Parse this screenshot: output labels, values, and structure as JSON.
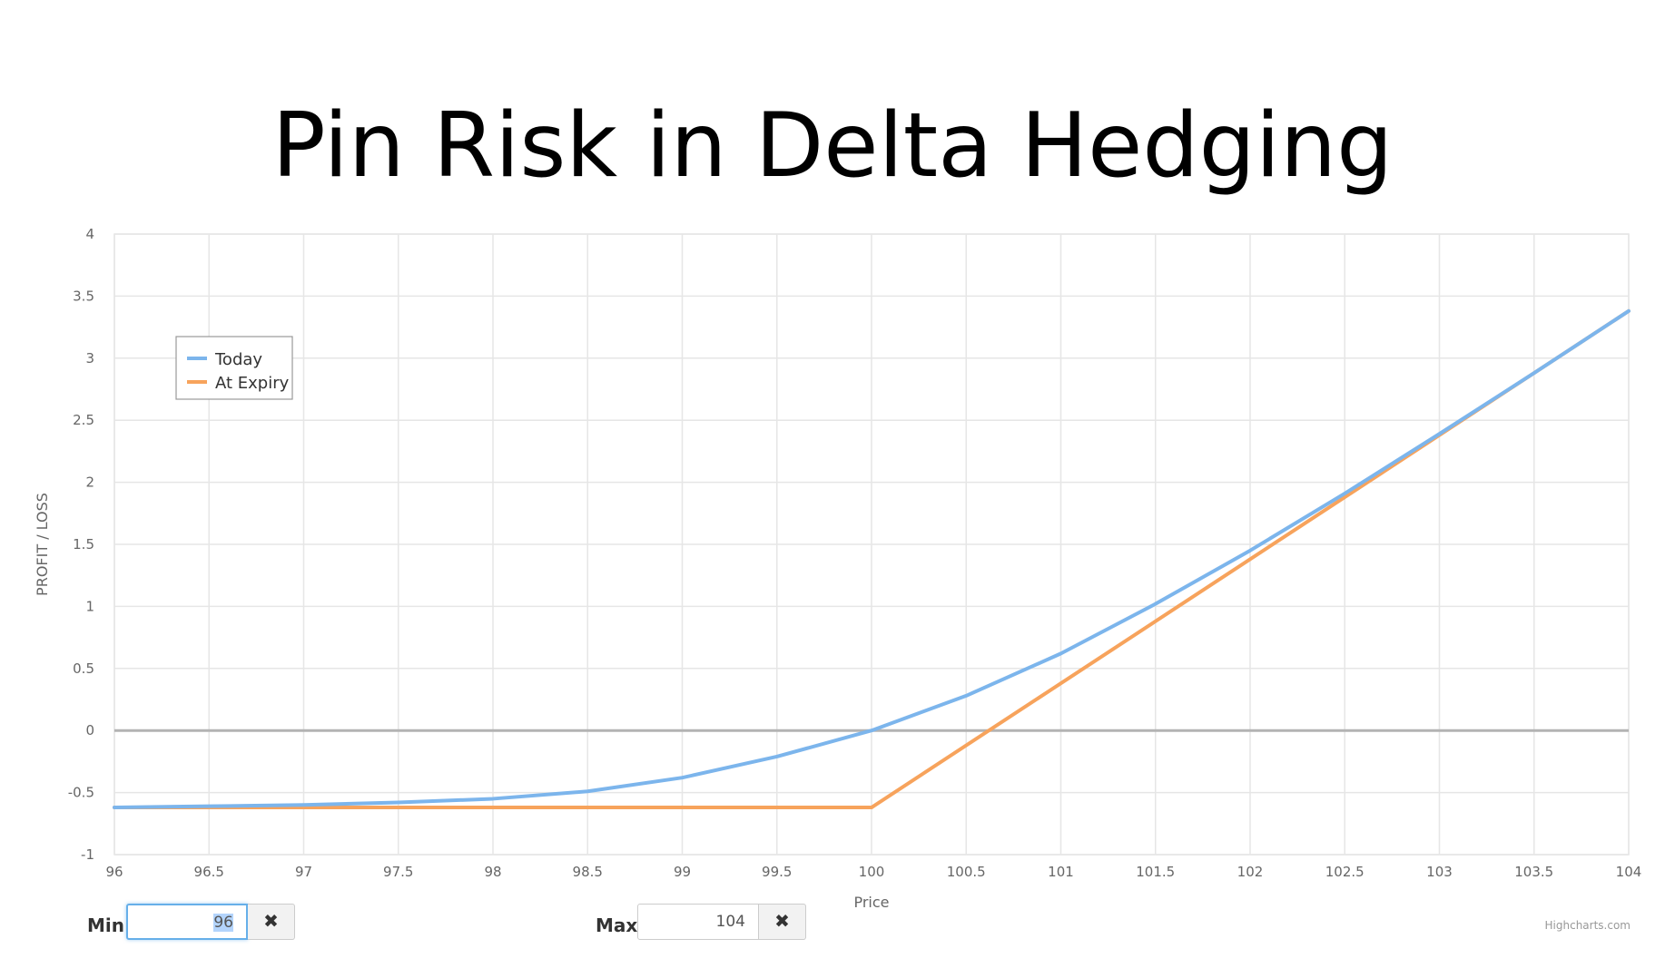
{
  "title": "Pin Risk in Delta Hedging",
  "chart_data": {
    "type": "line",
    "xlabel": "Price",
    "ylabel": "PROFIT / LOSS",
    "xlim": [
      96,
      104
    ],
    "ylim": [
      -1,
      4
    ],
    "x_ticks": [
      "96",
      "96.5",
      "97",
      "97.5",
      "98",
      "98.5",
      "99",
      "99.5",
      "100",
      "100.5",
      "101",
      "101.5",
      "102",
      "102.5",
      "103",
      "103.5",
      "104"
    ],
    "y_ticks": [
      "-1",
      "-0.5",
      "0",
      "0.5",
      "1",
      "1.5",
      "2",
      "2.5",
      "3",
      "3.5",
      "4"
    ],
    "grid": true,
    "legend_position": "top-left",
    "series": [
      {
        "name": "Today",
        "color": "#7cb5ec",
        "x": [
          96,
          96.5,
          97,
          97.5,
          98,
          98.5,
          99,
          99.5,
          100,
          100.5,
          101,
          101.5,
          102,
          102.5,
          103,
          103.5,
          104
        ],
        "y": [
          -0.62,
          -0.61,
          -0.6,
          -0.58,
          -0.55,
          -0.49,
          -0.38,
          -0.21,
          0.0,
          0.28,
          0.62,
          1.02,
          1.45,
          1.91,
          2.39,
          2.88,
          3.38
        ]
      },
      {
        "name": "At Expiry",
        "color": "#f7a35c",
        "x": [
          96,
          100,
          104
        ],
        "y": [
          -0.62,
          -0.62,
          3.38
        ]
      }
    ],
    "credits": "Highcharts.com"
  },
  "controls": {
    "min_label": "Min",
    "min_value": "96",
    "max_label": "Max",
    "max_value": "104",
    "clear_icon": "✖"
  }
}
